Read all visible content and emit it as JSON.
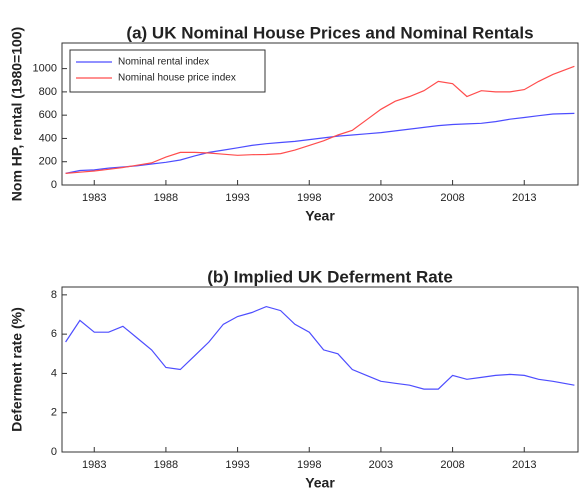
{
  "chart_data": [
    {
      "type": "line",
      "title": "(a) UK Nominal House Prices and Nominal Rentals",
      "xlabel": "Year",
      "ylabel": "Nom HP, rental (1980=100)",
      "x": [
        1981,
        1982,
        1983,
        1984,
        1985,
        1986,
        1987,
        1988,
        1989,
        1990,
        1991,
        1992,
        1993,
        1994,
        1995,
        1996,
        1997,
        1998,
        1999,
        2000,
        2001,
        2002,
        2003,
        2004,
        2005,
        2006,
        2007,
        2008,
        2009,
        2010,
        2011,
        2012,
        2013,
        2014,
        2015,
        2016.5
      ],
      "series": [
        {
          "name": "Nominal rental index",
          "color": "#4d4dff",
          "values": [
            100,
            125,
            130,
            145,
            155,
            165,
            180,
            195,
            215,
            250,
            280,
            300,
            320,
            340,
            355,
            365,
            375,
            390,
            405,
            420,
            430,
            440,
            450,
            465,
            480,
            495,
            510,
            520,
            525,
            530,
            545,
            565,
            580,
            595,
            610,
            615
          ]
        },
        {
          "name": "Nominal house price index",
          "color": "#ff4d4d",
          "values": [
            100,
            110,
            120,
            135,
            150,
            170,
            190,
            240,
            280,
            280,
            275,
            265,
            255,
            260,
            262,
            270,
            300,
            340,
            380,
            430,
            470,
            560,
            650,
            720,
            760,
            810,
            890,
            870,
            760,
            810,
            800,
            800,
            820,
            890,
            950,
            1020
          ]
        }
      ],
      "xlim": [
        1980.75,
        2016.75
      ],
      "xticks": [
        1983,
        1988,
        1993,
        1998,
        2003,
        2008,
        2013
      ],
      "ylim": [
        0,
        1220
      ],
      "yticks": [
        0,
        200,
        400,
        600,
        800,
        1000
      ],
      "legend": "upper left"
    },
    {
      "type": "line",
      "title": "(b) Implied UK Deferment Rate",
      "xlabel": "Year",
      "ylabel": "Deferment rate (%)",
      "x": [
        1981,
        1982,
        1983,
        1984,
        1985,
        1986,
        1987,
        1988,
        1989,
        1990,
        1991,
        1992,
        1993,
        1994,
        1995,
        1996,
        1997,
        1998,
        1999,
        2000,
        2001,
        2002,
        2003,
        2004,
        2005,
        2006,
        2007,
        2008,
        2009,
        2010,
        2011,
        2012,
        2013,
        2014,
        2015,
        2016.5
      ],
      "series": [
        {
          "color": "#4d4dff",
          "values": [
            5.6,
            6.7,
            6.1,
            6.1,
            6.4,
            5.8,
            5.2,
            4.3,
            4.2,
            4.9,
            5.6,
            6.5,
            6.9,
            7.1,
            7.4,
            7.2,
            6.5,
            6.1,
            5.2,
            5.0,
            4.2,
            3.9,
            3.6,
            3.5,
            3.4,
            3.2,
            3.2,
            3.9,
            3.7,
            3.8,
            3.9,
            3.95,
            3.9,
            3.7,
            3.6,
            3.4
          ]
        }
      ],
      "xlim": [
        1980.75,
        2016.75
      ],
      "xticks": [
        1983,
        1988,
        1993,
        1998,
        2003,
        2008,
        2013
      ],
      "ylim": [
        0,
        8.4
      ],
      "yticks": [
        0,
        2,
        4,
        6,
        8
      ]
    }
  ]
}
